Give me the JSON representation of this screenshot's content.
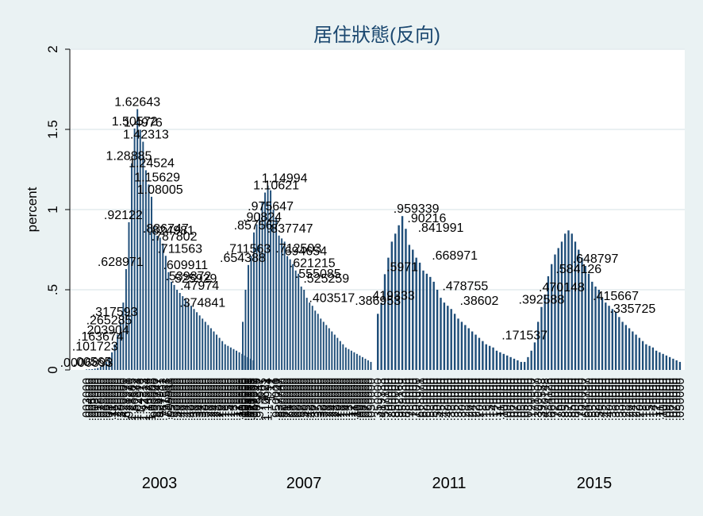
{
  "chart_data": {
    "type": "bar",
    "title": "居住狀態(反向)",
    "ylabel": "percent",
    "xlabel": "",
    "ylim": [
      0,
      2
    ],
    "yticks": [
      0,
      0.5,
      1,
      1.5,
      2
    ],
    "ytick_labels": [
      "0",
      ".5",
      "1",
      "1.5",
      "2"
    ],
    "year_labels": [
      "2003",
      "2007",
      "2011",
      "2015"
    ],
    "bar_color": "#1f4e79",
    "plot_background": "#ffffff",
    "outer_background": "#eaf2f3",
    "grid": true,
    "note": "",
    "clusters": [
      {
        "values": [
          0.003,
          0.004,
          0.005,
          0.008,
          0.012,
          0.02,
          0.035,
          0.05,
          0.08,
          0.11,
          0.16,
          0.22,
          0.3,
          0.42,
          0.628971,
          0.92122,
          1.28885,
          1.50572,
          1.62643,
          1.4976,
          1.42313,
          1.24524,
          1.15629,
          1.08005,
          0.9,
          0.836747,
          0.824981,
          0.787802,
          0.711563,
          0.609911,
          0.55,
          0.53,
          0.5,
          0.48,
          0.46,
          0.44,
          0.42,
          0.4,
          0.38,
          0.36,
          0.34,
          0.32,
          0.3,
          0.28,
          0.26,
          0.24,
          0.22,
          0.2,
          0.18,
          0.16,
          0.15,
          0.14,
          0.13,
          0.12,
          0.11,
          0.1,
          0.09,
          0.08,
          0.07,
          0.06
        ],
        "label_texts": [
          ".0006893",
          ".00565",
          ".101723",
          ".163674",
          ".203904",
          ".265285",
          ".317593",
          ".628971",
          ".92122",
          "1.28885",
          "1.50572",
          "1.62643",
          "1.4976",
          "1.42313",
          "1.24524",
          "1.15629",
          "1.08005",
          ".836747",
          ".824981",
          ".787802",
          ".711563",
          ".609911",
          ".539872",
          ".525929",
          ".47974",
          ".374841"
        ],
        "label_values": [
          0.0006893,
          0.00565,
          0.101723,
          0.163674,
          0.203904,
          0.265285,
          0.317593,
          0.628971,
          0.92122,
          1.28885,
          1.50572,
          1.62643,
          1.4976,
          1.42313,
          1.24524,
          1.15629,
          1.08005,
          0.836747,
          0.824981,
          0.787802,
          0.711563,
          0.609911,
          0.539872,
          0.525929,
          0.47974,
          0.374841
        ]
      },
      {
        "values": [
          0.3,
          0.5,
          0.654388,
          0.711563,
          0.857567,
          0.90824,
          0.975647,
          1.05,
          1.10621,
          1.14994,
          1.12,
          1.0,
          0.95,
          0.837747,
          0.82,
          0.8,
          0.71,
          0.69,
          0.66,
          0.62,
          0.6,
          0.52,
          0.5,
          0.45,
          0.42,
          0.4,
          0.37,
          0.35,
          0.32,
          0.3,
          0.28,
          0.26,
          0.24,
          0.22,
          0.2,
          0.18,
          0.16,
          0.14,
          0.13,
          0.12,
          0.11,
          0.1,
          0.09,
          0.08,
          0.07,
          0.06,
          0.05
        ],
        "label_texts": [
          ".654388",
          ".711563",
          ".857567",
          ".90824",
          ".975647",
          "1.10621",
          "1.14994",
          ".837747",
          ".712503",
          ".694654",
          ".621215",
          ".555085",
          ".525259",
          ".403517"
        ],
        "label_values": [
          0.654388,
          0.711563,
          0.857567,
          0.90824,
          0.975647,
          1.10621,
          1.14994,
          0.837747,
          0.712503,
          0.694654,
          0.621215,
          0.555085,
          0.525259,
          0.403517
        ]
      },
      {
        "values": [
          0.35,
          0.419333,
          0.5971,
          0.7,
          0.8,
          0.85,
          0.90216,
          0.959339,
          0.88,
          0.78,
          0.75,
          0.7,
          0.668971,
          0.62,
          0.6,
          0.58,
          0.55,
          0.5,
          0.45,
          0.42,
          0.4,
          0.38,
          0.35,
          0.32,
          0.3,
          0.28,
          0.26,
          0.24,
          0.22,
          0.2,
          0.18,
          0.16,
          0.15,
          0.14,
          0.12,
          0.11,
          0.1,
          0.09,
          0.08,
          0.07,
          0.06,
          0.05
        ],
        "label_texts": [
          ".386953",
          ".419333",
          ".5971",
          ".959339",
          ".90216",
          ".841991",
          ".668971",
          ".478755",
          ".38602"
        ],
        "label_values": [
          0.386953,
          0.419333,
          0.5971,
          0.959339,
          0.90216,
          0.841991,
          0.668971,
          0.478755,
          0.38602
        ]
      },
      {
        "values": [
          0.05,
          0.08,
          0.12,
          0.171537,
          0.3,
          0.392588,
          0.470148,
          0.584126,
          0.66,
          0.72,
          0.76,
          0.8,
          0.85,
          0.87,
          0.85,
          0.8,
          0.75,
          0.7,
          0.648797,
          0.6,
          0.55,
          0.52,
          0.5,
          0.45,
          0.42,
          0.4,
          0.38,
          0.36,
          0.33,
          0.3,
          0.28,
          0.26,
          0.24,
          0.22,
          0.2,
          0.18,
          0.16,
          0.15,
          0.14,
          0.12,
          0.11,
          0.1,
          0.09,
          0.08,
          0.07,
          0.06,
          0.05
        ],
        "label_texts": [
          ".171537",
          ".392588",
          ".470148",
          ".584126",
          ".648797",
          ".415667",
          ".335725"
        ],
        "label_values": [
          0.171537,
          0.392588,
          0.470148,
          0.584126,
          0.648797,
          0.415667,
          0.335725
        ]
      }
    ]
  }
}
